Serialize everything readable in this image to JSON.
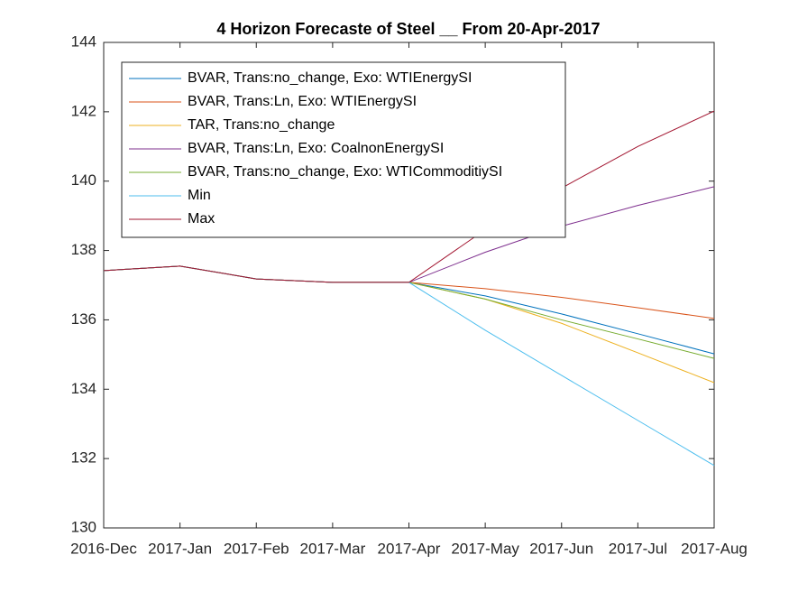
{
  "chart_data": {
    "type": "line",
    "title": "4 Horizon Forecaste of Steel __ From 20-Apr-2017",
    "categories": [
      "2016-Dec",
      "2017-Jan",
      "2017-Feb",
      "2017-Mar",
      "2017-Apr",
      "2017-May",
      "2017-Jun",
      "2017-Jul",
      "2017-Aug"
    ],
    "series": [
      {
        "name": "BVAR, Trans:no_change, Exo: WTIEnergySI",
        "color": "#0072bd",
        "values": [
          137.42,
          137.55,
          137.18,
          137.08,
          137.08,
          136.69,
          136.17,
          135.6,
          135.02
        ]
      },
      {
        "name": "BVAR, Trans:Ln, Exo: WTIEnergySI",
        "color": "#d95319",
        "values": [
          137.42,
          137.55,
          137.18,
          137.08,
          137.08,
          136.9,
          136.65,
          136.35,
          136.04
        ]
      },
      {
        "name": "TAR, Trans:no_change",
        "color": "#edb120",
        "values": [
          137.42,
          137.55,
          137.18,
          137.08,
          137.08,
          136.6,
          135.9,
          135.05,
          134.19
        ]
      },
      {
        "name": "BVAR, Trans:Ln, Exo: CoalnonEnergySI",
        "color": "#7e2f8e",
        "values": [
          137.42,
          137.55,
          137.18,
          137.08,
          137.08,
          137.95,
          138.7,
          139.3,
          139.84
        ]
      },
      {
        "name": "BVAR, Trans:no_change, Exo: WTICommoditiySI",
        "color": "#77ac30",
        "values": [
          137.42,
          137.55,
          137.18,
          137.08,
          137.08,
          136.6,
          136.0,
          135.45,
          134.89
        ]
      },
      {
        "name": "Min",
        "color": "#4dbeee",
        "values": [
          137.42,
          137.55,
          137.18,
          137.08,
          137.08,
          135.7,
          134.4,
          133.1,
          131.8
        ]
      },
      {
        "name": "Max",
        "color": "#a2142f",
        "values": [
          137.42,
          137.55,
          137.18,
          137.08,
          137.08,
          138.6,
          139.8,
          141.0,
          142.02
        ]
      }
    ],
    "ylim": [
      130,
      144
    ],
    "yticks": [
      130,
      132,
      134,
      136,
      138,
      140,
      142,
      144
    ],
    "grid": false,
    "legend": "upper left"
  }
}
